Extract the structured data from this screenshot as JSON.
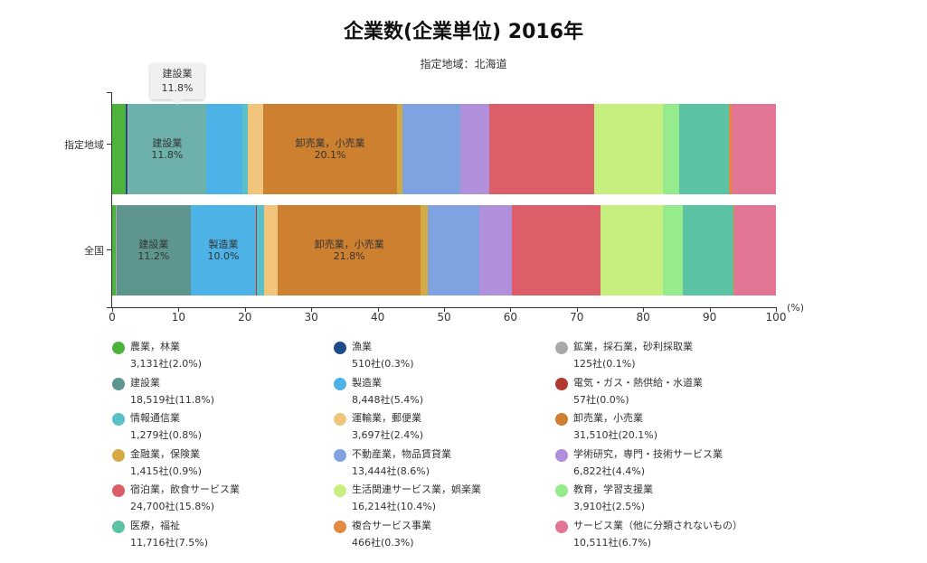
{
  "header": {
    "title": "企業数(企業単位) 2016年",
    "subtitle": "指定地域：北海道"
  },
  "tooltip": {
    "name": "建設業",
    "value": "11.8%"
  },
  "axis": {
    "y_labels": [
      "指定地域",
      "全国"
    ],
    "x_ticks": [
      "0",
      "10",
      "20",
      "30",
      "40",
      "50",
      "60",
      "70",
      "80",
      "90",
      "100"
    ],
    "x_unit": "(%)"
  },
  "categories": [
    {
      "name": "農業，林業",
      "color": "#4db33d",
      "count": "3,131社",
      "pct": "(2.0%)"
    },
    {
      "name": "漁業",
      "color": "#1f4a8a",
      "count": "510社",
      "pct": "(0.3%)"
    },
    {
      "name": "鉱業，採石業，砂利採取業",
      "color": "#a9a9a9",
      "count": "125社",
      "pct": "(0.1%)"
    },
    {
      "name": "建設業",
      "color": "#5e968f",
      "count": "18,519社",
      "pct": "(11.8%)"
    },
    {
      "name": "製造業",
      "color": "#4db3e6",
      "count": "8,448社",
      "pct": "(5.4%)"
    },
    {
      "name": "電気・ガス・熱供給・水道業",
      "color": "#b03a2e",
      "count": "57社",
      "pct": "(0.0%)"
    },
    {
      "name": "情報通信業",
      "color": "#5bc0c8",
      "count": "1,279社",
      "pct": "(0.8%)"
    },
    {
      "name": "運輸業，郵便業",
      "color": "#f2c57c",
      "count": "3,697社",
      "pct": "(2.4%)"
    },
    {
      "name": "卸売業，小売業",
      "color": "#cc8030",
      "count": "31,510社",
      "pct": "(20.1%)"
    },
    {
      "name": "金融業，保険業",
      "color": "#d4aa45",
      "count": "1,415社",
      "pct": "(0.9%)"
    },
    {
      "name": "不動産業，物品賃貸業",
      "color": "#7fa3e0",
      "count": "13,444社",
      "pct": "(8.6%)"
    },
    {
      "name": "学術研究，専門・技術サービス業",
      "color": "#b08fdb",
      "count": "6,822社",
      "pct": "(4.4%)"
    },
    {
      "name": "宿泊業，飲食サービス業",
      "color": "#dc5e68",
      "count": "24,700社",
      "pct": "(15.8%)"
    },
    {
      "name": "生活関連サービス業，娯楽業",
      "color": "#c6ef80",
      "count": "16,214社",
      "pct": "(10.4%)"
    },
    {
      "name": "教育，学習支援業",
      "color": "#96eb8c",
      "count": "3,910社",
      "pct": "(2.5%)"
    },
    {
      "name": "医療，福祉",
      "color": "#5bc2a3",
      "count": "11,716社",
      "pct": "(7.5%)"
    },
    {
      "name": "複合サービス事業",
      "color": "#e38a42",
      "count": "466社",
      "pct": "(0.3%)"
    },
    {
      "name": "サービス業（他に分類されないもの）",
      "color": "#e27594",
      "count": "10,511社",
      "pct": "(6.7%)"
    }
  ],
  "bars": [
    {
      "label": "指定地域",
      "highlight_index": 3,
      "highlight_color": "#6eb0aa",
      "segment_labels": {
        "3": [
          "建設業",
          "11.8%"
        ],
        "8": [
          "卸売業，小売業",
          "20.1%"
        ]
      }
    },
    {
      "label": "全国",
      "segment_labels": {
        "3": [
          "建設業",
          "11.2%"
        ],
        "4": [
          "製造業",
          "10.0%"
        ],
        "8": [
          "卸売業，小売業",
          "21.8%"
        ]
      }
    }
  ],
  "chart_data": {
    "type": "bar",
    "orientation": "horizontal-stacked-100",
    "title": "企業数(企業単位) 2016年",
    "subtitle": "指定地域：北海道",
    "xlabel": "(%)",
    "ylabel": "",
    "xlim": [
      0,
      100
    ],
    "x_ticks": [
      0,
      10,
      20,
      30,
      40,
      50,
      60,
      70,
      80,
      90,
      100
    ],
    "categories": [
      "指定地域",
      "全国"
    ],
    "legend_position": "bottom",
    "grid": false,
    "series": [
      {
        "name": "農業，林業",
        "values": [
          2.0,
          0.5
        ]
      },
      {
        "name": "漁業",
        "values": [
          0.3,
          0.1
        ]
      },
      {
        "name": "鉱業，採石業，砂利採取業",
        "values": [
          0.1,
          0.1
        ]
      },
      {
        "name": "建設業",
        "values": [
          11.8,
          11.2
        ]
      },
      {
        "name": "製造業",
        "values": [
          5.4,
          10.0
        ]
      },
      {
        "name": "電気・ガス・熱供給・水道業",
        "values": [
          0.0,
          0.1
        ]
      },
      {
        "name": "情報通信業",
        "values": [
          0.8,
          1.1
        ]
      },
      {
        "name": "運輸業，郵便業",
        "values": [
          2.4,
          2.0
        ]
      },
      {
        "name": "卸売業，小売業",
        "values": [
          20.1,
          21.8
        ]
      },
      {
        "name": "金融業，保険業",
        "values": [
          0.9,
          1.0
        ]
      },
      {
        "name": "不動産業，物品賃貸業",
        "values": [
          8.6,
          7.8
        ]
      },
      {
        "name": "学術研究，専門・技術サービス業",
        "values": [
          4.4,
          5.0
        ]
      },
      {
        "name": "宿泊業，飲食サービス業",
        "values": [
          15.8,
          13.4
        ]
      },
      {
        "name": "生活関連サービス業，娯楽業",
        "values": [
          10.4,
          9.6
        ]
      },
      {
        "name": "教育，学習支援業",
        "values": [
          2.5,
          3.0
        ]
      },
      {
        "name": "医療，福祉",
        "values": [
          7.5,
          7.6
        ]
      },
      {
        "name": "複合サービス事業",
        "values": [
          0.3,
          0.2
        ]
      },
      {
        "name": "サービス業（他に分類されないもの）",
        "values": [
          6.7,
          6.3
        ]
      }
    ],
    "counts_selected_region": [
      3131,
      510,
      125,
      18519,
      8448,
      57,
      1279,
      3697,
      31510,
      1415,
      13444,
      6822,
      24700,
      16214,
      3910,
      11716,
      466,
      10511
    ],
    "annotations": [
      "tooltip: 建設業 11.8%"
    ]
  }
}
